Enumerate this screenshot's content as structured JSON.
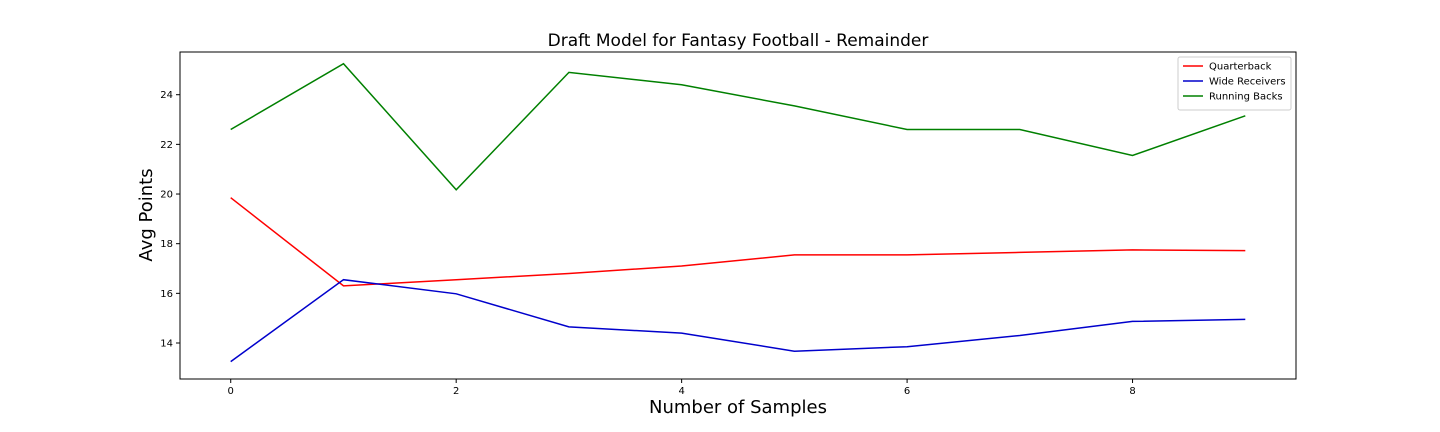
{
  "chart_data": {
    "type": "line",
    "title": "Draft Model for Fantasy Football - Remainder",
    "xlabel": "Number of Samples",
    "ylabel": "Avg Points",
    "x": [
      0,
      1,
      2,
      3,
      4,
      5,
      6,
      7,
      8,
      9
    ],
    "xlim": [
      -0.45,
      9.45
    ],
    "ylim": [
      12.55,
      25.72
    ],
    "xticks": [
      0,
      2,
      4,
      6,
      8
    ],
    "yticks": [
      14,
      16,
      18,
      20,
      22,
      24
    ],
    "grid": false,
    "legend_position": "top-right",
    "series": [
      {
        "name": "Quarterback",
        "color": "#ff0000",
        "values": [
          19.85,
          16.3,
          16.55,
          16.8,
          17.1,
          17.55,
          17.55,
          17.65,
          17.75,
          17.72
        ]
      },
      {
        "name": "Wide Receivers",
        "color": "#0000cc",
        "values": [
          13.25,
          16.55,
          15.98,
          14.65,
          14.4,
          13.67,
          13.85,
          14.3,
          14.87,
          14.95
        ]
      },
      {
        "name": "Running Backs",
        "color": "#008000",
        "values": [
          22.6,
          25.25,
          20.17,
          24.9,
          24.4,
          23.55,
          22.6,
          22.6,
          21.55,
          23.15
        ]
      }
    ]
  }
}
